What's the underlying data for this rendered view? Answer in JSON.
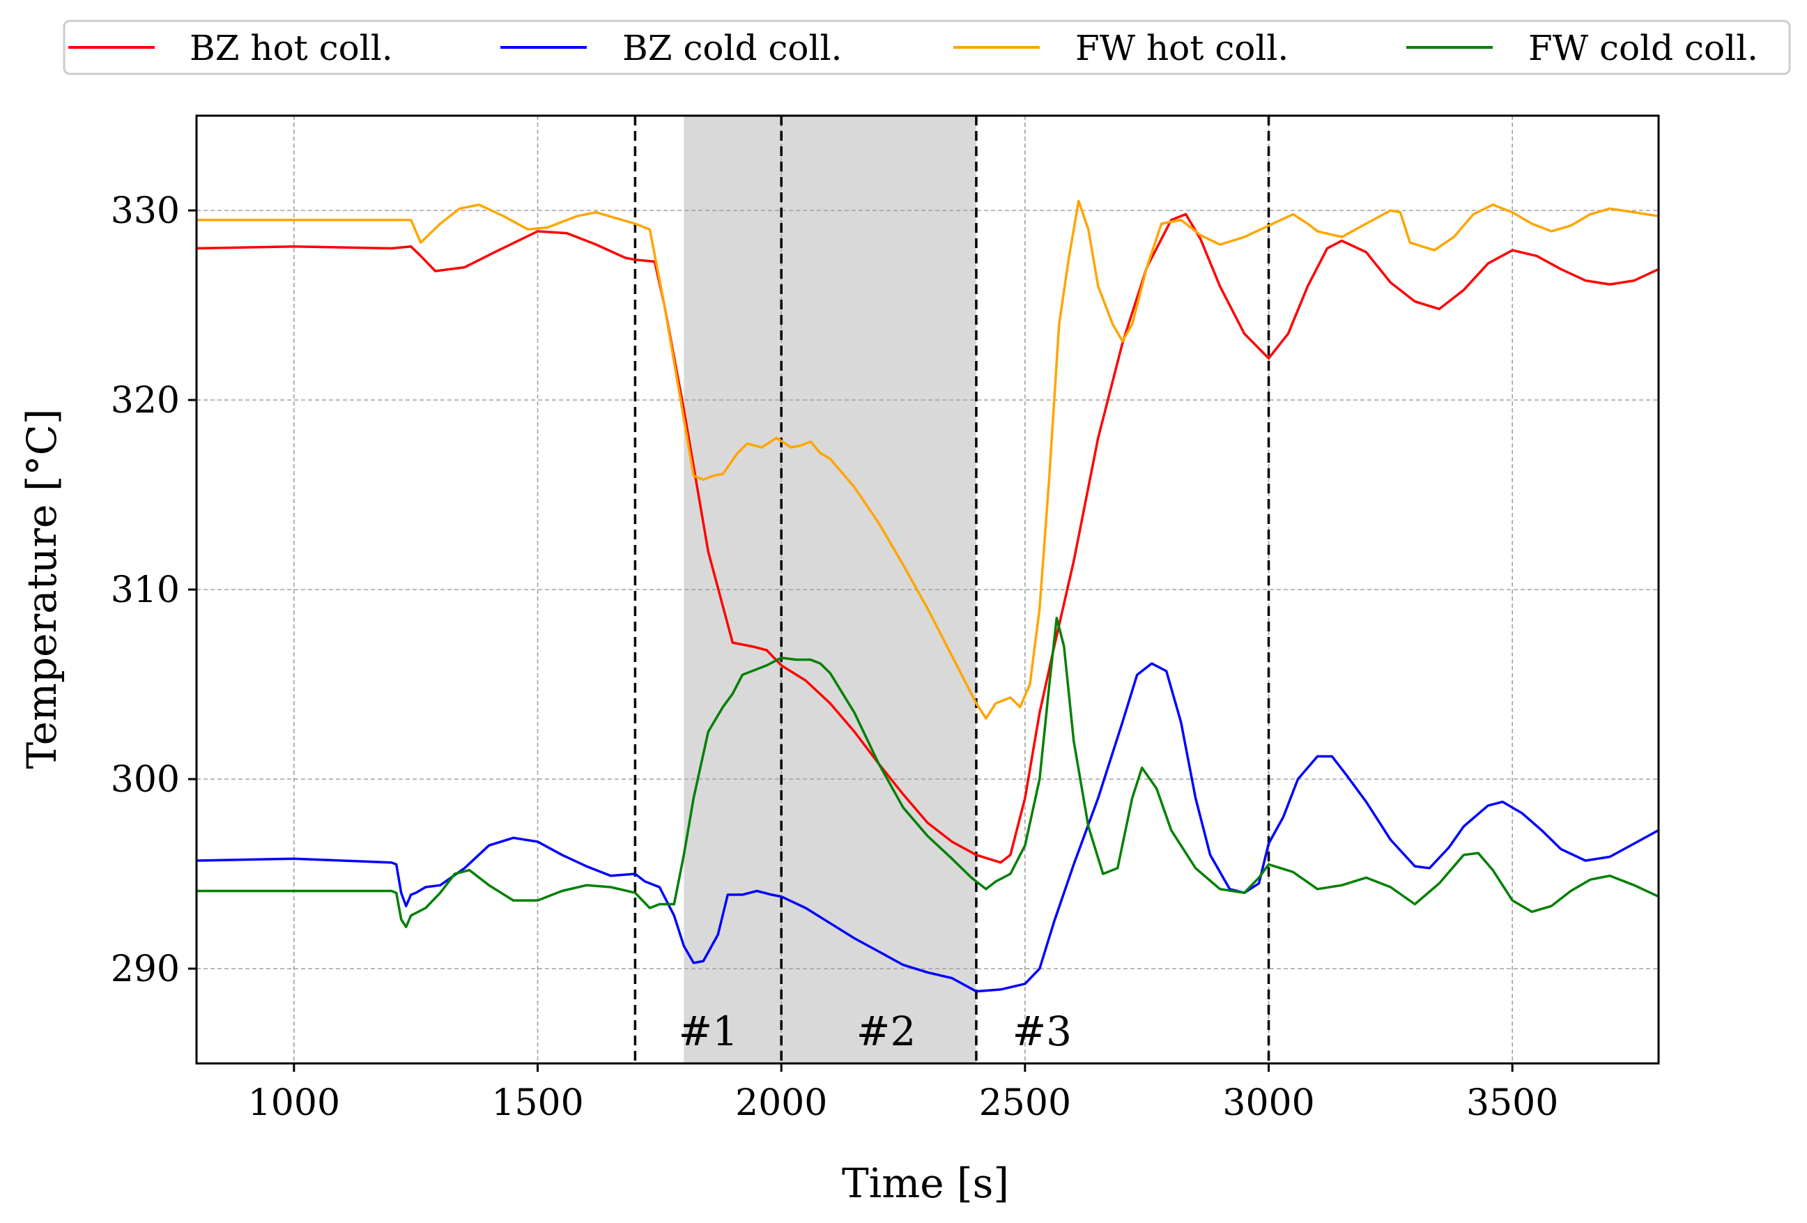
{
  "chart_data": {
    "type": "line",
    "xlabel": "Time [s]",
    "ylabel": "Temperature [°C]",
    "xlim": [
      800,
      3800
    ],
    "ylim": [
      285,
      335
    ],
    "xticks": [
      1000,
      1500,
      2000,
      2500,
      3000,
      3500
    ],
    "yticks": [
      290,
      300,
      310,
      320,
      330
    ],
    "grid": true,
    "legend": {
      "placement": "top-outside",
      "entries": [
        "BZ hot coll.",
        "BZ cold coll.",
        "FW hot coll.",
        "FW cold coll."
      ]
    },
    "shaded_region": {
      "x_from": 1800,
      "x_to": 2400,
      "color": "#d9d9d9"
    },
    "vlines": [
      1700,
      2000,
      2400,
      3000
    ],
    "phase_labels": [
      {
        "text": "#1",
        "x": 1850,
        "y": 286.7
      },
      {
        "text": "#2",
        "x": 2215,
        "y": 286.7
      },
      {
        "text": "#3",
        "x": 2535,
        "y": 286.7
      }
    ],
    "series": [
      {
        "name": "BZ hot coll.",
        "color": "#ff0000",
        "points": [
          [
            800,
            328.0
          ],
          [
            1000,
            328.1
          ],
          [
            1200,
            328.0
          ],
          [
            1240,
            328.1
          ],
          [
            1260,
            327.6
          ],
          [
            1290,
            326.8
          ],
          [
            1350,
            327.0
          ],
          [
            1420,
            327.9
          ],
          [
            1500,
            328.9
          ],
          [
            1560,
            328.8
          ],
          [
            1620,
            328.2
          ],
          [
            1680,
            327.5
          ],
          [
            1700,
            327.4
          ],
          [
            1740,
            327.3
          ],
          [
            1760,
            325.0
          ],
          [
            1800,
            319.5
          ],
          [
            1850,
            312.0
          ],
          [
            1900,
            307.2
          ],
          [
            1940,
            307.0
          ],
          [
            1970,
            306.8
          ],
          [
            2000,
            306.0
          ],
          [
            2050,
            305.2
          ],
          [
            2100,
            304.0
          ],
          [
            2150,
            302.5
          ],
          [
            2200,
            300.8
          ],
          [
            2250,
            299.2
          ],
          [
            2300,
            297.7
          ],
          [
            2350,
            296.7
          ],
          [
            2400,
            296.0
          ],
          [
            2450,
            295.6
          ],
          [
            2470,
            296.0
          ],
          [
            2500,
            299.0
          ],
          [
            2530,
            303.5
          ],
          [
            2560,
            307.0
          ],
          [
            2600,
            311.5
          ],
          [
            2650,
            318.0
          ],
          [
            2700,
            323.0
          ],
          [
            2750,
            327.0
          ],
          [
            2800,
            329.5
          ],
          [
            2830,
            329.8
          ],
          [
            2860,
            328.5
          ],
          [
            2900,
            326.0
          ],
          [
            2950,
            323.5
          ],
          [
            3000,
            322.2
          ],
          [
            3040,
            323.5
          ],
          [
            3080,
            326.0
          ],
          [
            3120,
            328.0
          ],
          [
            3150,
            328.4
          ],
          [
            3200,
            327.8
          ],
          [
            3250,
            326.2
          ],
          [
            3300,
            325.2
          ],
          [
            3350,
            324.8
          ],
          [
            3400,
            325.8
          ],
          [
            3450,
            327.2
          ],
          [
            3500,
            327.9
          ],
          [
            3550,
            327.6
          ],
          [
            3600,
            326.9
          ],
          [
            3650,
            326.3
          ],
          [
            3700,
            326.1
          ],
          [
            3750,
            326.3
          ],
          [
            3800,
            326.9
          ]
        ]
      },
      {
        "name": "BZ cold coll.",
        "color": "#0000ff",
        "points": [
          [
            800,
            295.7
          ],
          [
            1000,
            295.8
          ],
          [
            1100,
            295.7
          ],
          [
            1200,
            295.6
          ],
          [
            1210,
            295.5
          ],
          [
            1220,
            294.0
          ],
          [
            1230,
            293.3
          ],
          [
            1240,
            293.9
          ],
          [
            1250,
            294.0
          ],
          [
            1270,
            294.3
          ],
          [
            1300,
            294.4
          ],
          [
            1350,
            295.3
          ],
          [
            1400,
            296.5
          ],
          [
            1450,
            296.9
          ],
          [
            1500,
            296.7
          ],
          [
            1550,
            296.0
          ],
          [
            1600,
            295.4
          ],
          [
            1650,
            294.9
          ],
          [
            1700,
            295.0
          ],
          [
            1720,
            294.6
          ],
          [
            1750,
            294.3
          ],
          [
            1780,
            292.8
          ],
          [
            1800,
            291.2
          ],
          [
            1820,
            290.3
          ],
          [
            1840,
            290.4
          ],
          [
            1870,
            291.8
          ],
          [
            1890,
            293.9
          ],
          [
            1920,
            293.9
          ],
          [
            1950,
            294.1
          ],
          [
            1980,
            293.9
          ],
          [
            2000,
            293.8
          ],
          [
            2050,
            293.2
          ],
          [
            2100,
            292.4
          ],
          [
            2150,
            291.6
          ],
          [
            2200,
            290.9
          ],
          [
            2250,
            290.2
          ],
          [
            2300,
            289.8
          ],
          [
            2350,
            289.5
          ],
          [
            2400,
            288.8
          ],
          [
            2450,
            288.9
          ],
          [
            2500,
            289.2
          ],
          [
            2530,
            290.0
          ],
          [
            2560,
            292.5
          ],
          [
            2600,
            295.5
          ],
          [
            2650,
            299.0
          ],
          [
            2700,
            303.0
          ],
          [
            2730,
            305.5
          ],
          [
            2760,
            306.1
          ],
          [
            2790,
            305.7
          ],
          [
            2820,
            303.0
          ],
          [
            2850,
            299.0
          ],
          [
            2880,
            296.0
          ],
          [
            2920,
            294.2
          ],
          [
            2950,
            294.0
          ],
          [
            2980,
            294.5
          ],
          [
            3000,
            296.6
          ],
          [
            3030,
            298.0
          ],
          [
            3060,
            300.0
          ],
          [
            3100,
            301.2
          ],
          [
            3130,
            301.2
          ],
          [
            3160,
            300.2
          ],
          [
            3200,
            298.8
          ],
          [
            3250,
            296.8
          ],
          [
            3300,
            295.4
          ],
          [
            3330,
            295.3
          ],
          [
            3370,
            296.4
          ],
          [
            3400,
            297.5
          ],
          [
            3450,
            298.6
          ],
          [
            3480,
            298.8
          ],
          [
            3520,
            298.2
          ],
          [
            3560,
            297.3
          ],
          [
            3600,
            296.3
          ],
          [
            3650,
            295.7
          ],
          [
            3700,
            295.9
          ],
          [
            3750,
            296.6
          ],
          [
            3800,
            297.3
          ]
        ]
      },
      {
        "name": "FW hot coll.",
        "color": "#ffa500",
        "points": [
          [
            800,
            329.5
          ],
          [
            1000,
            329.5
          ],
          [
            1200,
            329.5
          ],
          [
            1240,
            329.5
          ],
          [
            1260,
            328.3
          ],
          [
            1300,
            329.3
          ],
          [
            1340,
            330.1
          ],
          [
            1380,
            330.3
          ],
          [
            1430,
            329.7
          ],
          [
            1480,
            329.0
          ],
          [
            1520,
            329.1
          ],
          [
            1580,
            329.7
          ],
          [
            1620,
            329.9
          ],
          [
            1660,
            329.6
          ],
          [
            1700,
            329.3
          ],
          [
            1730,
            329.0
          ],
          [
            1760,
            325.0
          ],
          [
            1790,
            320.5
          ],
          [
            1800,
            319.0
          ],
          [
            1820,
            316.0
          ],
          [
            1840,
            315.8
          ],
          [
            1860,
            316.0
          ],
          [
            1880,
            316.1
          ],
          [
            1910,
            317.2
          ],
          [
            1930,
            317.7
          ],
          [
            1960,
            317.5
          ],
          [
            1990,
            318.0
          ],
          [
            2020,
            317.5
          ],
          [
            2040,
            317.6
          ],
          [
            2060,
            317.8
          ],
          [
            2080,
            317.2
          ],
          [
            2100,
            316.9
          ],
          [
            2150,
            315.4
          ],
          [
            2200,
            313.5
          ],
          [
            2250,
            311.3
          ],
          [
            2300,
            309.0
          ],
          [
            2350,
            306.5
          ],
          [
            2400,
            304.0
          ],
          [
            2420,
            303.2
          ],
          [
            2440,
            304.0
          ],
          [
            2470,
            304.3
          ],
          [
            2490,
            303.8
          ],
          [
            2510,
            305.0
          ],
          [
            2530,
            309.0
          ],
          [
            2550,
            316.0
          ],
          [
            2570,
            324.0
          ],
          [
            2590,
            327.5
          ],
          [
            2610,
            330.5
          ],
          [
            2630,
            329.0
          ],
          [
            2650,
            326.0
          ],
          [
            2680,
            324.0
          ],
          [
            2700,
            323.1
          ],
          [
            2720,
            324.0
          ],
          [
            2750,
            327.0
          ],
          [
            2780,
            329.3
          ],
          [
            2820,
            329.5
          ],
          [
            2860,
            328.7
          ],
          [
            2900,
            328.2
          ],
          [
            2950,
            328.6
          ],
          [
            3000,
            329.2
          ],
          [
            3050,
            329.8
          ],
          [
            3080,
            329.3
          ],
          [
            3100,
            328.9
          ],
          [
            3150,
            328.6
          ],
          [
            3200,
            329.3
          ],
          [
            3250,
            330.0
          ],
          [
            3270,
            329.9
          ],
          [
            3290,
            328.3
          ],
          [
            3340,
            327.9
          ],
          [
            3380,
            328.6
          ],
          [
            3420,
            329.8
          ],
          [
            3460,
            330.3
          ],
          [
            3500,
            329.9
          ],
          [
            3540,
            329.3
          ],
          [
            3580,
            328.9
          ],
          [
            3620,
            329.2
          ],
          [
            3660,
            329.8
          ],
          [
            3700,
            330.1
          ],
          [
            3750,
            329.9
          ],
          [
            3800,
            329.7
          ]
        ]
      },
      {
        "name": "FW cold coll.",
        "color": "#008000",
        "points": [
          [
            800,
            294.1
          ],
          [
            1000,
            294.1
          ],
          [
            1100,
            294.1
          ],
          [
            1200,
            294.1
          ],
          [
            1210,
            294.0
          ],
          [
            1220,
            292.6
          ],
          [
            1230,
            292.2
          ],
          [
            1240,
            292.8
          ],
          [
            1270,
            293.2
          ],
          [
            1300,
            294.0
          ],
          [
            1330,
            295.0
          ],
          [
            1360,
            295.2
          ],
          [
            1400,
            294.4
          ],
          [
            1450,
            293.6
          ],
          [
            1500,
            293.6
          ],
          [
            1550,
            294.1
          ],
          [
            1600,
            294.4
          ],
          [
            1650,
            294.3
          ],
          [
            1700,
            294.0
          ],
          [
            1730,
            293.2
          ],
          [
            1750,
            293.4
          ],
          [
            1780,
            293.4
          ],
          [
            1800,
            296.0
          ],
          [
            1820,
            299.0
          ],
          [
            1850,
            302.5
          ],
          [
            1880,
            303.8
          ],
          [
            1900,
            304.5
          ],
          [
            1920,
            305.5
          ],
          [
            1940,
            305.7
          ],
          [
            1970,
            306.0
          ],
          [
            2000,
            306.4
          ],
          [
            2030,
            306.3
          ],
          [
            2060,
            306.3
          ],
          [
            2080,
            306.1
          ],
          [
            2100,
            305.6
          ],
          [
            2150,
            303.5
          ],
          [
            2200,
            300.8
          ],
          [
            2250,
            298.5
          ],
          [
            2300,
            297.0
          ],
          [
            2350,
            295.8
          ],
          [
            2390,
            294.8
          ],
          [
            2420,
            294.2
          ],
          [
            2440,
            294.6
          ],
          [
            2470,
            295.0
          ],
          [
            2500,
            296.5
          ],
          [
            2530,
            300.0
          ],
          [
            2550,
            305.0
          ],
          [
            2565,
            308.5
          ],
          [
            2580,
            307.0
          ],
          [
            2600,
            302.0
          ],
          [
            2630,
            297.5
          ],
          [
            2660,
            295.0
          ],
          [
            2690,
            295.3
          ],
          [
            2720,
            299.0
          ],
          [
            2740,
            300.6
          ],
          [
            2770,
            299.5
          ],
          [
            2800,
            297.3
          ],
          [
            2850,
            295.3
          ],
          [
            2900,
            294.2
          ],
          [
            2950,
            294.0
          ],
          [
            2980,
            294.8
          ],
          [
            3000,
            295.5
          ],
          [
            3050,
            295.1
          ],
          [
            3100,
            294.2
          ],
          [
            3150,
            294.4
          ],
          [
            3200,
            294.8
          ],
          [
            3250,
            294.3
          ],
          [
            3300,
            293.4
          ],
          [
            3350,
            294.5
          ],
          [
            3400,
            296.0
          ],
          [
            3430,
            296.1
          ],
          [
            3460,
            295.2
          ],
          [
            3500,
            293.6
          ],
          [
            3540,
            293.0
          ],
          [
            3580,
            293.3
          ],
          [
            3620,
            294.1
          ],
          [
            3660,
            294.7
          ],
          [
            3700,
            294.9
          ],
          [
            3750,
            294.4
          ],
          [
            3800,
            293.8
          ]
        ]
      }
    ]
  }
}
